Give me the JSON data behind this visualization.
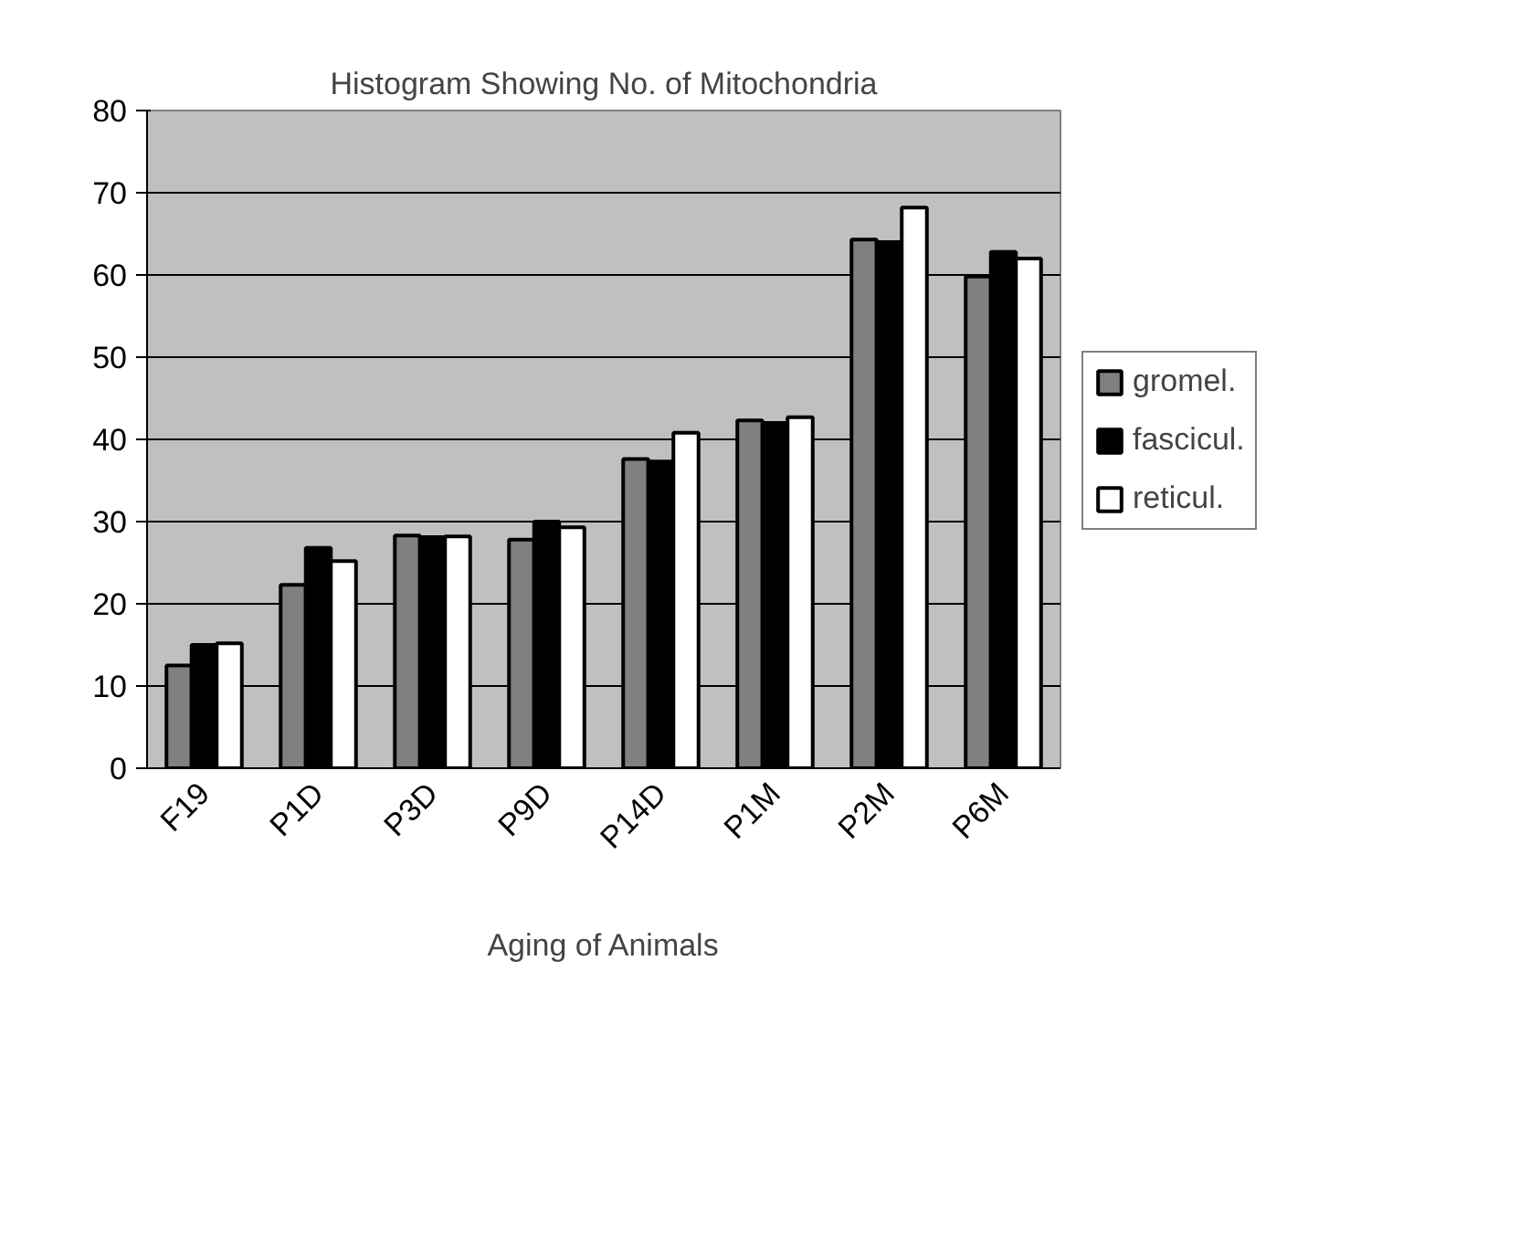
{
  "chart_data": {
    "type": "bar",
    "title": "Histogram Showing No. of Mitochondria",
    "xlabel": "Aging of Animals",
    "categories": [
      "F19",
      "P1D",
      "P3D",
      "P9D",
      "P14D",
      "P1M",
      "P2M",
      "P6M"
    ],
    "series": [
      {
        "name": "gromel.",
        "color": "#808080",
        "values": [
          12.5,
          22.3,
          28.3,
          27.8,
          37.6,
          42.3,
          64.3,
          59.8
        ]
      },
      {
        "name": "fascicul.",
        "color": "#000000",
        "values": [
          15,
          26.8,
          28.1,
          30,
          37.3,
          42,
          64,
          62.8
        ]
      },
      {
        "name": "reticul.",
        "color": "#ffffff",
        "values": [
          15.2,
          25.2,
          28.2,
          29.3,
          40.8,
          42.7,
          68.2,
          62
        ]
      }
    ],
    "ylim": [
      0,
      80
    ],
    "yticks": [
      0,
      10,
      20,
      30,
      40,
      50,
      60,
      70,
      80
    ],
    "grid": "y",
    "legend": "right"
  }
}
